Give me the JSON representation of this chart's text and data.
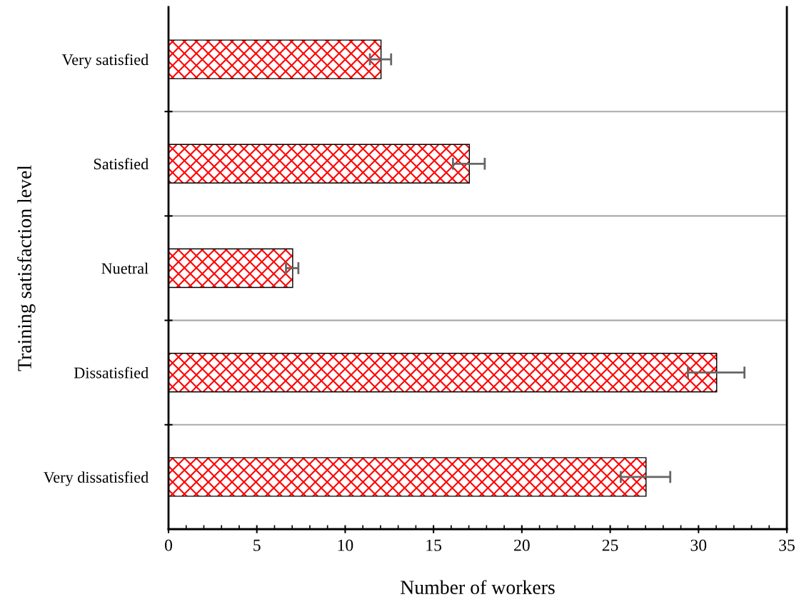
{
  "chart_data": {
    "type": "bar",
    "orientation": "horizontal",
    "xlabel": "Number of workers",
    "ylabel": "Training satisfaction level",
    "categories": [
      "Very satisfied",
      "Satisfied",
      "Nuetral",
      "Dissatisfied",
      "Very dissatisfied"
    ],
    "values": [
      12,
      17,
      7,
      31,
      27
    ],
    "errors": [
      0.6,
      0.9,
      0.35,
      1.6,
      1.4
    ],
    "color": "#ff0000",
    "xlim": [
      0,
      35
    ],
    "xticks": [
      0,
      5,
      10,
      15,
      20,
      25,
      30,
      35
    ],
    "grid": "y",
    "legend": false
  }
}
